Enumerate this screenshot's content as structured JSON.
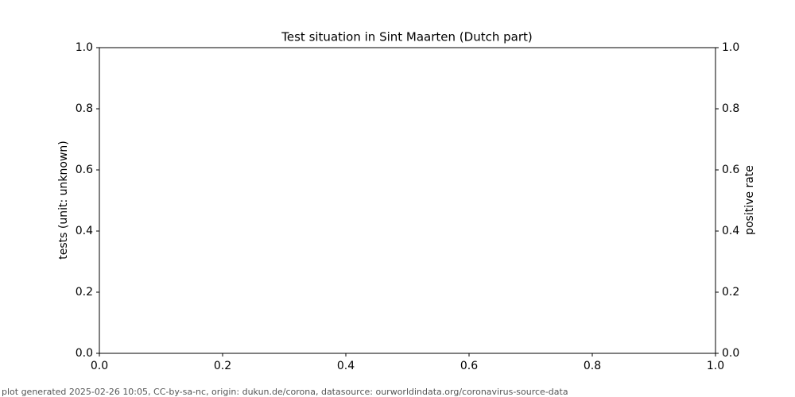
{
  "chart_data": {
    "type": "line",
    "title": "Test situation in Sint Maarten (Dutch part)",
    "y_label": "tests (unit: unknown)",
    "y2_label": "positive rate",
    "footer": "plot generated 2025-02-26 10:05, CC-by-sa-nc, origin: dukun.de/corona, datasource: ourworldindata.org/coronavirus-source-data",
    "x": [],
    "series": [],
    "xlim": [
      0,
      1
    ],
    "xticks": [
      {
        "value": 0,
        "label": "0.0"
      },
      0.2,
      0.4,
      0.6,
      0.8,
      {
        "value": 1,
        "label": "1.0"
      }
    ],
    "ylim": [
      0,
      1
    ],
    "yticks": [
      {
        "value": 0,
        "label": "0.0"
      },
      0.2,
      0.4,
      0.6,
      0.8,
      {
        "value": 1,
        "label": "1.0"
      }
    ],
    "y2lim": [
      0,
      1
    ],
    "y2ticks": [
      {
        "value": 0,
        "label": "0.0"
      },
      0.2,
      0.4,
      0.6,
      0.8,
      {
        "value": 1,
        "label": "1.0"
      }
    ],
    "grid": false
  }
}
